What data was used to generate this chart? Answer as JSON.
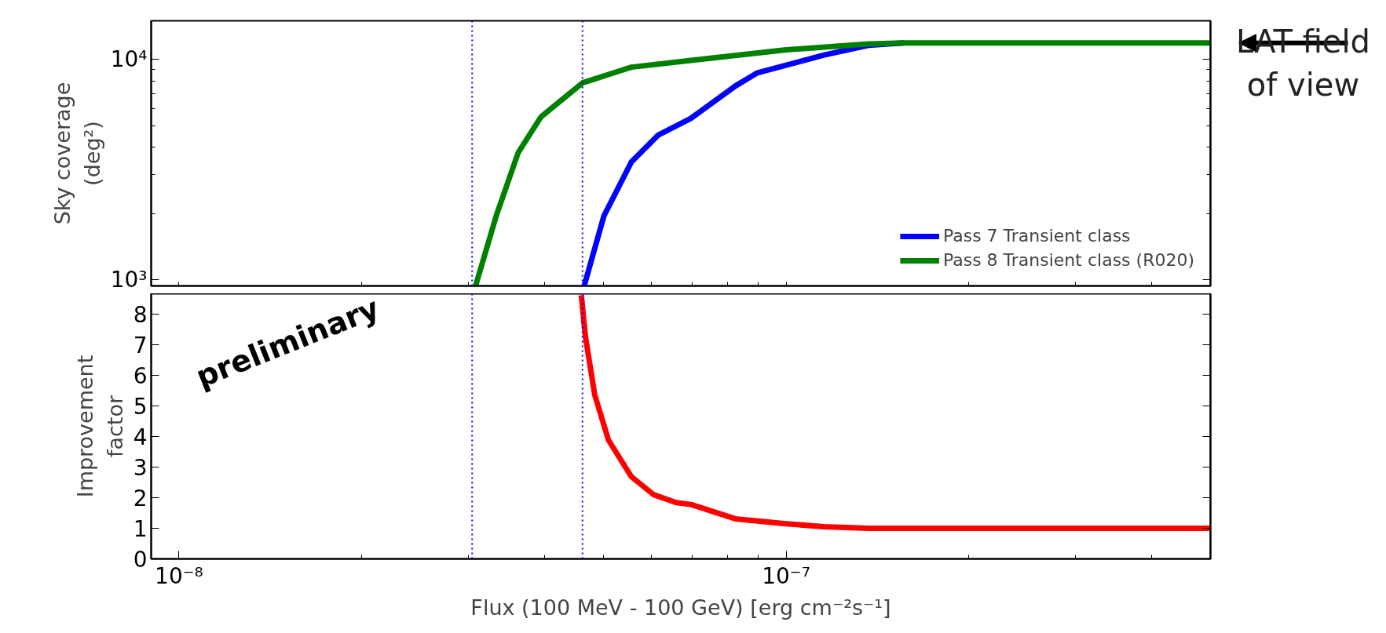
{
  "chart_data": [
    {
      "type": "line",
      "xlim": [
        9e-09,
        5e-07
      ],
      "ylim": [
        940,
        15000
      ],
      "log": "xy",
      "tick_labels": "y",
      "grid": false,
      "legend": "bottom right",
      "ylabel": "Sky coverage\n(deg²)",
      "xticks": [
        {
          "value": 1e-08,
          "label": null
        },
        {
          "value": 1e-07,
          "label": null
        },
        {
          "value": 9e-09,
          "label": null
        },
        {
          "value": 2e-08,
          "label": null
        },
        {
          "value": 3e-08,
          "label": null
        },
        {
          "value": 4e-08,
          "label": null
        },
        {
          "value": 5e-08,
          "label": null
        },
        {
          "value": 6e-08,
          "label": null
        },
        {
          "value": 7e-08,
          "label": null
        },
        {
          "value": 8e-08,
          "label": null
        },
        {
          "value": 9e-08,
          "label": null
        },
        {
          "value": 2e-07,
          "label": null
        },
        {
          "value": 3e-07,
          "label": null
        },
        {
          "value": 4e-07,
          "label": null
        },
        {
          "value": 5e-07,
          "label": null
        }
      ],
      "yticks": [
        {
          "value": 1000,
          "label": "10³"
        },
        {
          "value": 10000,
          "label": "10⁴"
        },
        {
          "value": 2000,
          "label": null
        },
        {
          "value": 3000,
          "label": null
        },
        {
          "value": 4000,
          "label": null
        },
        {
          "value": 5000,
          "label": null
        },
        {
          "value": 6000,
          "label": null
        },
        {
          "value": 7000,
          "label": null
        },
        {
          "value": 8000,
          "label": null
        },
        {
          "value": 9000,
          "label": null
        }
      ],
      "ref_lines": [
        {
          "axis": "x",
          "value": 3.04e-08,
          "label": null,
          "color": "#0000ff",
          "line_style": "dotted"
        },
        {
          "axis": "x",
          "value": 4.62e-08,
          "label": null,
          "color": "#0000ff",
          "line_style": "dotted"
        }
      ],
      "annotations": [
        {
          "text": "LAT field\nof view",
          "x": 5e-07,
          "y": 11900
        }
      ],
      "series": [
        {
          "name": "Pass 7 Transient class",
          "color": "#0000ff",
          "x": [
            4.65e-08,
            5.01e-08,
            5.56e-08,
            6.16e-08,
            6.97e-08,
            8.25e-08,
            8.97e-08,
            1e-07,
            1.155e-07,
            1.366e-07,
            1.563e-07
          ],
          "values": [
            940,
            1950,
            3430,
            4550,
            5410,
            7590,
            8710,
            9430,
            10490,
            11610,
            11900
          ]
        },
        {
          "name": "Pass 8 Transient class (R020)",
          "color": "#008000",
          "x": [
            3.08e-08,
            3.33e-08,
            3.62e-08,
            3.95e-08,
            4.62e-08,
            5.56e-08,
            6.97e-08,
            1e-07,
            1.366e-07,
            1.563e-07,
            5e-07
          ],
          "values": [
            940,
            1950,
            3780,
            5510,
            7840,
            9240,
            9920,
            11080,
            11770,
            11900,
            11900
          ]
        }
      ]
    },
    {
      "type": "line",
      "xlim": [
        9e-09,
        5e-07
      ],
      "ylim": [
        0,
        8.67
      ],
      "log": "x",
      "grid": false,
      "xlabel": "Flux (100 MeV - 100 GeV) [erg cm⁻²s⁻¹]",
      "ylabel": "Improvement\nfactor",
      "xticks": [
        {
          "value": 1e-08,
          "label": "10⁻⁸"
        },
        {
          "value": 1e-07,
          "label": "10⁻⁷"
        },
        {
          "value": 9e-09,
          "label": null
        },
        {
          "value": 2e-08,
          "label": null
        },
        {
          "value": 3e-08,
          "label": null
        },
        {
          "value": 4e-08,
          "label": null
        },
        {
          "value": 5e-08,
          "label": null
        },
        {
          "value": 6e-08,
          "label": null
        },
        {
          "value": 7e-08,
          "label": null
        },
        {
          "value": 8e-08,
          "label": null
        },
        {
          "value": 9e-08,
          "label": null
        },
        {
          "value": 2e-07,
          "label": null
        },
        {
          "value": 3e-07,
          "label": null
        },
        {
          "value": 4e-07,
          "label": null
        },
        {
          "value": 5e-07,
          "label": null
        }
      ],
      "yticks": [
        0,
        1,
        2,
        3,
        4,
        5,
        6,
        7,
        8
      ],
      "ref_lines": [
        {
          "axis": "x",
          "value": 3.04e-08,
          "label": null,
          "color": "#0000ff",
          "line_style": "dotted"
        },
        {
          "axis": "x",
          "value": 4.62e-08,
          "label": null,
          "color": "#0000ff",
          "line_style": "dotted"
        }
      ],
      "annotations": [
        "preliminary"
      ],
      "series": [
        {
          "color": "#ff0000",
          "x": [
            4.6e-08,
            4.67e-08,
            4.84e-08,
            5.1e-08,
            5.56e-08,
            6.05e-08,
            6.59e-08,
            6.97e-08,
            8.25e-08,
            1e-07,
            1.155e-07,
            1.366e-07,
            5e-07
          ],
          "values": [
            8.62,
            7.29,
            5.36,
            3.88,
            2.69,
            2.1,
            1.84,
            1.78,
            1.31,
            1.15,
            1.05,
            1.0,
            1.0
          ]
        }
      ]
    }
  ]
}
